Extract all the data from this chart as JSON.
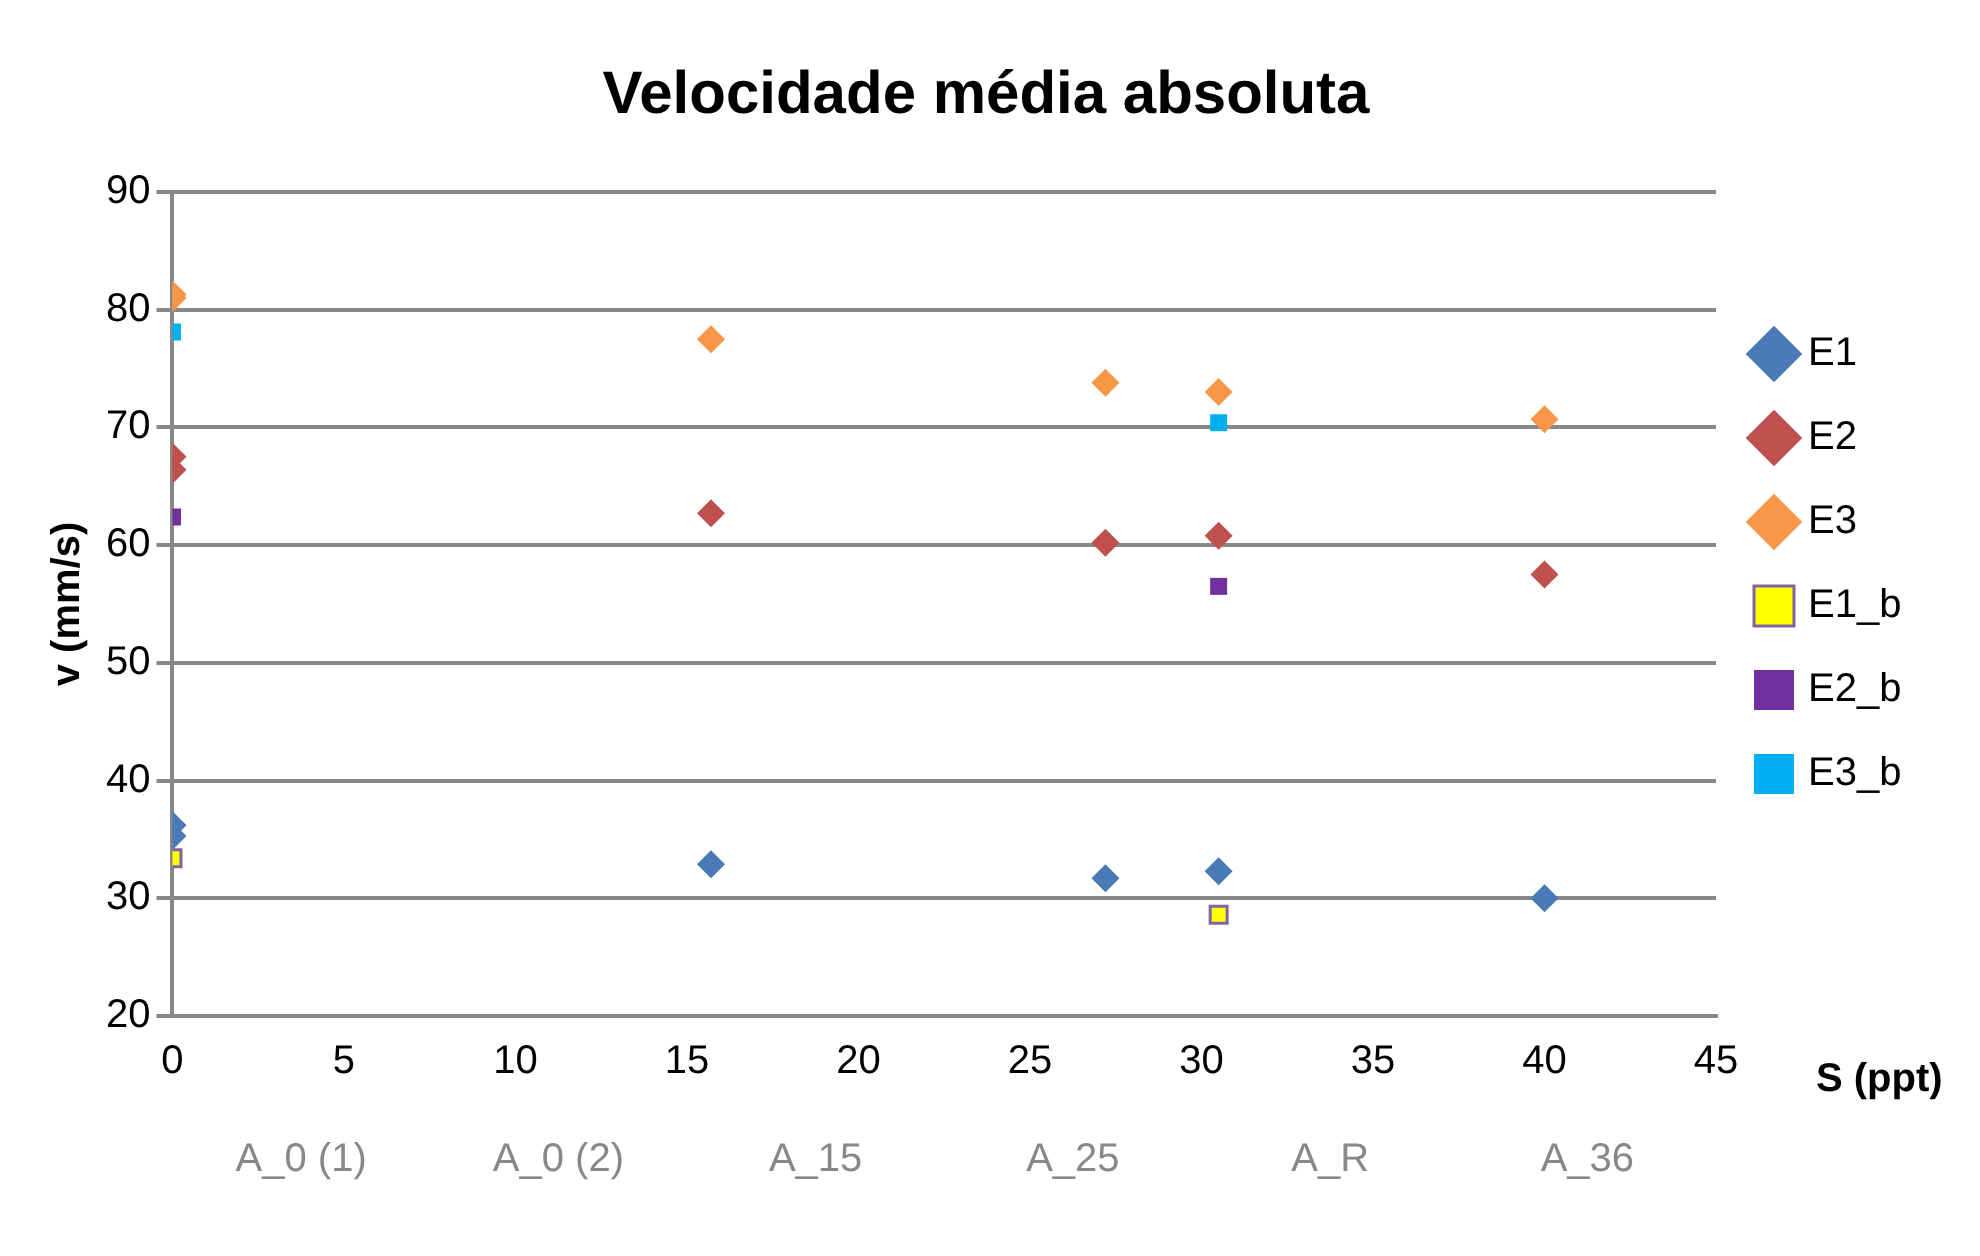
{
  "chart_data": {
    "type": "scatter",
    "title": "Velocidade média absoluta",
    "xlabel": "S (ppt)",
    "ylabel": "v (mm/s)",
    "xlim": [
      0,
      45
    ],
    "xticks": [
      0,
      5,
      10,
      15,
      20,
      25,
      30,
      35,
      40,
      45
    ],
    "ylim": [
      20,
      90
    ],
    "yticks": [
      20,
      30,
      40,
      50,
      60,
      70,
      80,
      90
    ],
    "grid": "y",
    "legend": "right",
    "series": [
      {
        "name": "E1",
        "color": "#4a7ab5",
        "marker": "diamond",
        "x": [
          0,
          0,
          15.7,
          27.2,
          30.5,
          40
        ],
        "values": [
          36.2,
          35.3,
          32.9,
          31.7,
          32.3,
          30.0
        ]
      },
      {
        "name": "E2",
        "color": "#c0504d",
        "marker": "diamond",
        "x": [
          0,
          0,
          15.7,
          27.2,
          30.5,
          40
        ],
        "values": [
          67.5,
          66.4,
          62.7,
          60.2,
          60.8,
          57.5
        ]
      },
      {
        "name": "E3",
        "color": "#f79646",
        "marker": "diamond",
        "x": [
          0,
          0,
          15.7,
          27.2,
          30.5,
          40
        ],
        "values": [
          81.3,
          81.0,
          77.5,
          73.8,
          73.0,
          70.7
        ]
      },
      {
        "name": "E1_b",
        "color": "#ffff00",
        "marker": "square",
        "x": [
          0,
          30.5
        ],
        "values": [
          33.4,
          28.6
        ]
      },
      {
        "name": "E2_b",
        "color": "#7030a0",
        "marker": "square",
        "x": [
          0,
          30.5
        ],
        "values": [
          62.4,
          56.5
        ]
      },
      {
        "name": "E3_b",
        "color": "#00b0f0",
        "marker": "square",
        "x": [
          0,
          30.5
        ],
        "values": [
          78.1,
          70.4
        ]
      }
    ],
    "annotations": [
      "A_0 (1)",
      "A_0 (2)",
      "A_15",
      "A_25",
      "A_R",
      "A_36"
    ]
  }
}
